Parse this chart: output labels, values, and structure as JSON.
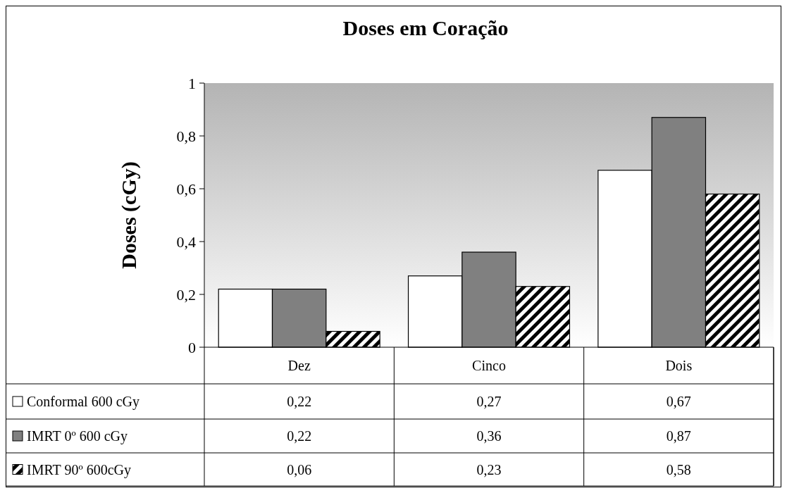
{
  "chart_data": {
    "type": "bar",
    "title": "Doses em Coração",
    "ylabel": "Doses (cGy)",
    "categories": [
      "Dez",
      "Cinco",
      "Dois"
    ],
    "series": [
      {
        "name": "Conformal 600 cGy",
        "color": "#ffffff",
        "values": [
          0.22,
          0.27,
          0.67
        ],
        "value_labels": [
          "0,22",
          "0,27",
          "0,67"
        ]
      },
      {
        "name": "IMRT 0º 600 cGy",
        "color": "#808080",
        "values": [
          0.22,
          0.36,
          0.87
        ],
        "value_labels": [
          "0,22",
          "0,36",
          "0,87"
        ]
      },
      {
        "name": "IMRT 90º 600cGy",
        "color": "#000000",
        "values": [
          0.06,
          0.23,
          0.58
        ],
        "value_labels": [
          "0,06",
          "0,23",
          "0,58"
        ]
      }
    ],
    "ylim": [
      0,
      1
    ],
    "yticks": [
      0,
      {
        "value": 0.2,
        "label": "0,2"
      },
      {
        "value": 0.4,
        "label": "0,4"
      },
      {
        "value": 0.6,
        "label": "0,6"
      },
      {
        "value": 0.8,
        "label": "0,8"
      },
      1
    ],
    "legend": "bottom",
    "grid": false
  }
}
